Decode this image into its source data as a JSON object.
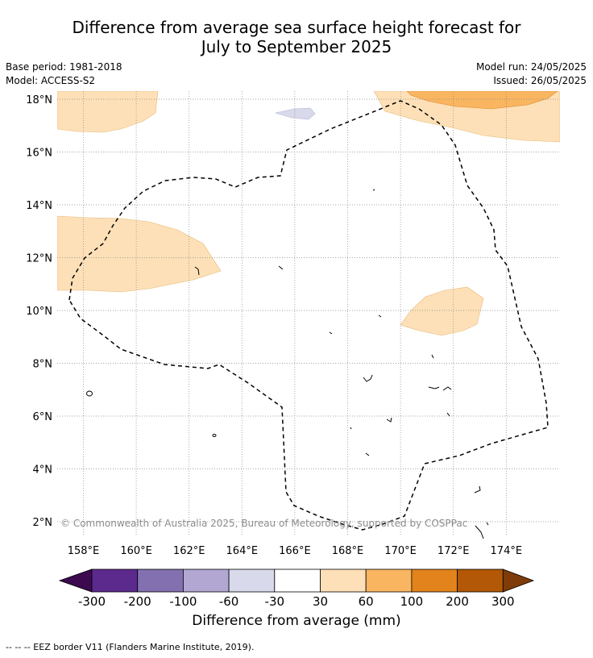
{
  "title": {
    "line1": "Difference from average sea surface height forecast for",
    "line2": "July to September 2025"
  },
  "meta": {
    "base_period": "Base period: 1981-2018",
    "model": "Model: ACCESS-S2",
    "model_run": "Model run: 24/05/2025",
    "issued": "Issued: 26/05/2025"
  },
  "map": {
    "copyright": "© Commonwealth of Australia 2025, Bureau of Meteorology, supported by COSPPac",
    "lat_labels": [
      "18°N",
      "16°N",
      "14°N",
      "12°N",
      "10°N",
      "8°N",
      "6°N",
      "4°N",
      "2°N"
    ],
    "lat_values": [
      18,
      16,
      14,
      12,
      10,
      8,
      6,
      4,
      2
    ],
    "lon_labels": [
      "158°E",
      "160°E",
      "162°E",
      "164°E",
      "166°E",
      "168°E",
      "170°E",
      "172°E",
      "174°E"
    ],
    "lon_values": [
      158,
      160,
      162,
      164,
      166,
      168,
      170,
      172,
      174
    ]
  },
  "colorbar": {
    "ticks": [
      "-300",
      "-200",
      "-100",
      "-60",
      "-30",
      "30",
      "60",
      "100",
      "200",
      "300"
    ],
    "colors": [
      "#3d0a4f",
      "#5b2a8c",
      "#8370b0",
      "#b2a7d2",
      "#d9d9ec",
      "#ffffff",
      "#fde0b7",
      "#f9b560",
      "#e2831b",
      "#b35806",
      "#7f3b08"
    ],
    "label": "Difference from average (mm)"
  },
  "footer": "-- -- -- EEZ border V11 (Flanders Marine Institute, 2019)."
}
